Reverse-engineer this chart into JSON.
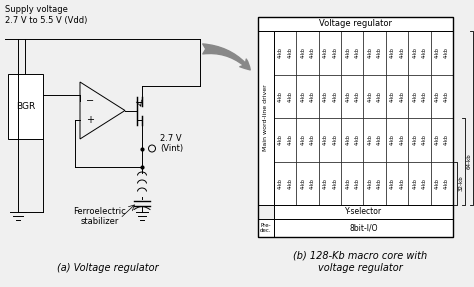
{
  "fig_width": 4.74,
  "fig_height": 2.87,
  "bg_color": "#f0f0f0",
  "caption_a": "(a) Voltage regulator",
  "caption_b": "(b) 128-Kb macro core with\nvoltage regulator",
  "supply_text": "Supply voltage\n2.7 V to 5.5 V (Vdd)",
  "vint_text": "2.7 V\n(Vint)",
  "ferroelectric_text": "Ferroelectric\nstabilizer",
  "bgr_text": "BGR",
  "voltage_reg_header": "Voltage regulator",
  "y_selector_text": "Y-selector",
  "pre_dec_text": "Pre-\ndec.",
  "bit_io_text": "8bit-I/O",
  "main_wd_text": "Main word-line driver",
  "size_128kb": "128-kb",
  "size_64kb": "64-kb",
  "size_32kb": "32-kb",
  "cell_text": "4-kb",
  "num_rows": 4,
  "num_cols": 8
}
